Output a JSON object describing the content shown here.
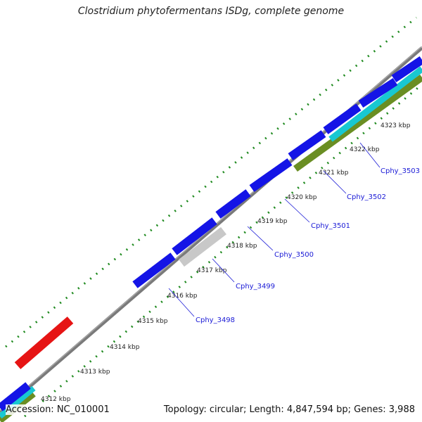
{
  "title": "Clostridium phytofermentans ISDg, complete genome",
  "footer": {
    "accession": "Accession: NC_010001",
    "summary": "Topology: circular; Length: 4,847,594 bp; Genes: 3,988"
  },
  "colors": {
    "backbone": "#8c8c8c",
    "tick": "#1f8a1f",
    "gene_forward": "#1414e6",
    "gene_highlight": "#e61414",
    "gene_grey": "#c8c8c8",
    "feature_cyan": "#18c8d2",
    "feature_olive": "#6a8e23",
    "label": "#1a1ad6"
  },
  "kbp_ticks": [
    "4312 kbp",
    "4313 kbp",
    "4314 kbp",
    "4315 kbp",
    "4316 kbp",
    "4317 kbp",
    "4318 kbp",
    "4319 kbp",
    "4320 kbp",
    "4321 kbp",
    "4322 kbp",
    "4323 kbp"
  ],
  "gene_labels": [
    "Cphy_3498",
    "Cphy_3499",
    "Cphy_3500",
    "Cphy_3501",
    "Cphy_3502",
    "Cphy_3503"
  ]
}
